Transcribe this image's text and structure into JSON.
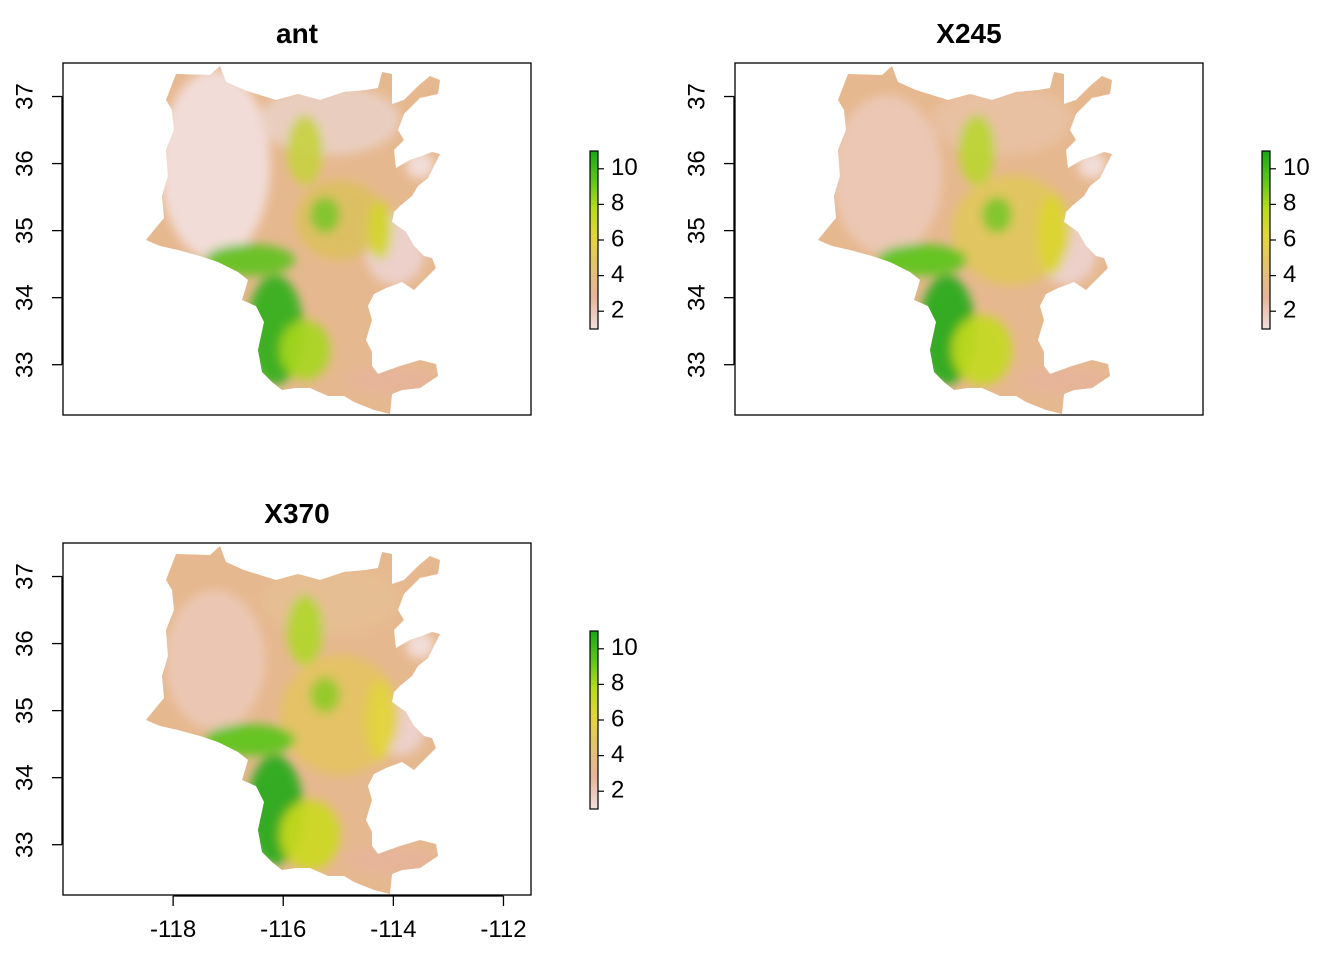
{
  "figure": {
    "legend_ticks": [
      "2",
      "4",
      "6",
      "8",
      "10"
    ],
    "x_ticks": [
      "-118",
      "-116",
      "-114",
      "-112"
    ],
    "y_ticks": [
      "33",
      "34",
      "35",
      "36",
      "37"
    ]
  },
  "panels": [
    {
      "title": "ant",
      "variant": 0
    },
    {
      "title": "X245",
      "variant": 1
    },
    {
      "title": "X370",
      "variant": 2
    }
  ],
  "colors": {
    "scale": [
      "#f2dedb",
      "#e6b49a",
      "#e3c273",
      "#e2d53c",
      "#b5dc1c",
      "#5fc41c",
      "#16a716"
    ]
  },
  "chart_data": [
    {
      "type": "heatmap",
      "title": "ant",
      "xlim": [
        -120,
        -111.5
      ],
      "ylim": [
        32.25,
        37.5
      ],
      "x_ticks": [
        -118,
        -116,
        -114,
        -112
      ],
      "y_ticks": [
        33,
        34,
        35,
        36,
        37
      ],
      "legend": {
        "min": 1,
        "max": 11,
        "ticks": [
          2,
          4,
          6,
          8,
          10
        ],
        "placement": "right"
      }
    },
    {
      "type": "heatmap",
      "title": "X245",
      "xlim": [
        -120,
        -111.5
      ],
      "ylim": [
        32.25,
        37.5
      ],
      "x_ticks": [
        -118,
        -116,
        -114,
        -112
      ],
      "y_ticks": [
        33,
        34,
        35,
        36,
        37
      ],
      "legend": {
        "min": 1,
        "max": 11,
        "ticks": [
          2,
          4,
          6,
          8,
          10
        ],
        "placement": "right"
      }
    },
    {
      "type": "heatmap",
      "title": "X370",
      "xlim": [
        -120,
        -111.5
      ],
      "ylim": [
        32.25,
        37.5
      ],
      "x_ticks": [
        -118,
        -116,
        -114,
        -112
      ],
      "y_ticks": [
        33,
        34,
        35,
        36,
        37
      ],
      "legend": {
        "min": 1,
        "max": 11,
        "ticks": [
          2,
          4,
          6,
          8,
          10
        ],
        "placement": "right"
      }
    }
  ]
}
